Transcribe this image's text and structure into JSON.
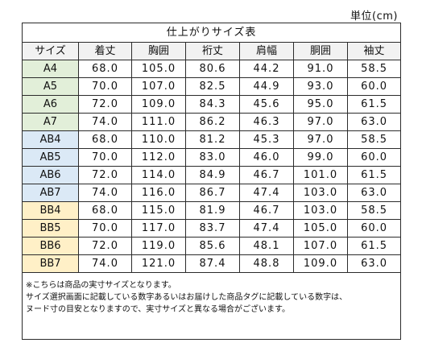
{
  "unit_label": "単位(cm)",
  "table": {
    "title": "仕上がりサイズ表",
    "headers": [
      "サイズ",
      "着丈",
      "胸囲",
      "裄丈",
      "肩幅",
      "胴囲",
      "袖丈"
    ],
    "group_colors": {
      "A": "#e2efd9",
      "AB": "#dbe9f6",
      "BB": "#fff0c7"
    },
    "rows": [
      {
        "size": "A4",
        "group": "A",
        "values": [
          "68.0",
          "105.0",
          "80.6",
          "44.2",
          "91.0",
          "58.5"
        ]
      },
      {
        "size": "A5",
        "group": "A",
        "values": [
          "70.0",
          "107.0",
          "82.5",
          "44.9",
          "93.0",
          "60.0"
        ]
      },
      {
        "size": "A6",
        "group": "A",
        "values": [
          "72.0",
          "109.0",
          "84.3",
          "45.6",
          "95.0",
          "61.5"
        ]
      },
      {
        "size": "A7",
        "group": "A",
        "values": [
          "74.0",
          "111.0",
          "86.2",
          "46.3",
          "97.0",
          "63.0"
        ]
      },
      {
        "size": "AB4",
        "group": "AB",
        "values": [
          "68.0",
          "110.0",
          "81.2",
          "45.3",
          "97.0",
          "58.5"
        ]
      },
      {
        "size": "AB5",
        "group": "AB",
        "values": [
          "70.0",
          "112.0",
          "83.0",
          "46.0",
          "99.0",
          "60.0"
        ]
      },
      {
        "size": "AB6",
        "group": "AB",
        "values": [
          "72.0",
          "114.0",
          "84.9",
          "46.7",
          "101.0",
          "61.5"
        ]
      },
      {
        "size": "AB7",
        "group": "AB",
        "values": [
          "74.0",
          "116.0",
          "86.7",
          "47.4",
          "103.0",
          "63.0"
        ]
      },
      {
        "size": "BB4",
        "group": "BB",
        "values": [
          "68.0",
          "115.0",
          "81.9",
          "46.7",
          "103.0",
          "58.5"
        ]
      },
      {
        "size": "BB5",
        "group": "BB",
        "values": [
          "70.0",
          "117.0",
          "83.7",
          "47.4",
          "105.0",
          "60.0"
        ]
      },
      {
        "size": "BB6",
        "group": "BB",
        "values": [
          "72.0",
          "119.0",
          "85.6",
          "48.1",
          "107.0",
          "61.5"
        ]
      },
      {
        "size": "BB7",
        "group": "BB",
        "values": [
          "74.0",
          "121.0",
          "87.4",
          "48.8",
          "109.0",
          "63.0"
        ]
      }
    ],
    "notes": [
      "※こちらは商品の実寸サイズとなります。",
      "サイズ選択画面に記載している数字あるいはお届けした商品タグに記載している数字は、",
      "ヌード寸の目安となりますので、実寸サイズと異なる場合がございます。"
    ]
  }
}
